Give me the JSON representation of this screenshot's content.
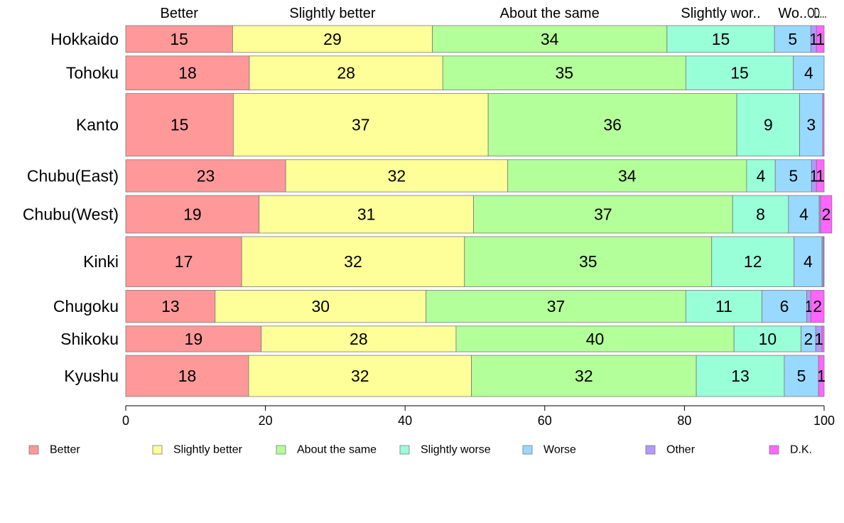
{
  "chart_data": {
    "type": "bar",
    "orientation": "horizontal",
    "stacked": true,
    "variable_width": true,
    "categories": [
      "Hokkaido",
      "Tohoku",
      "Kanto",
      "Chubu(East)",
      "Chubu(West)",
      "Kinki",
      "Chugoku",
      "Shikoku",
      "Kyushu"
    ],
    "top_labels": [
      "Better",
      "Slightly better",
      "About the same",
      "Slightly wor..",
      "Wo..",
      "O..",
      "D..."
    ],
    "series": [
      {
        "name": "Better",
        "color": "#FF9999",
        "values": [
          15.3,
          17.7,
          15.4,
          22.9,
          19.1,
          16.6,
          12.8,
          19.4,
          17.6
        ],
        "labels": [
          "15",
          "18",
          "15",
          "23",
          "19",
          "17",
          "13",
          "19",
          "18"
        ]
      },
      {
        "name": "Slightly better",
        "color": "#FFFF99",
        "values": [
          28.6,
          27.7,
          36.5,
          31.8,
          30.7,
          31.9,
          30.2,
          27.9,
          31.9
        ],
        "labels": [
          "29",
          "28",
          "37",
          "32",
          "31",
          "32",
          "30",
          "28",
          "32"
        ]
      },
      {
        "name": "About the same",
        "color": "#B3FF99",
        "values": [
          33.6,
          34.8,
          35.6,
          34.2,
          37.1,
          35.4,
          37.2,
          39.8,
          32.2
        ],
        "labels": [
          "34",
          "35",
          "36",
          "34",
          "37",
          "35",
          "37",
          "40",
          "32"
        ]
      },
      {
        "name": "Slightly worse",
        "color": "#99FFD9",
        "values": [
          15.4,
          15.4,
          9.0,
          4.1,
          8.0,
          11.8,
          10.9,
          9.6,
          12.6
        ],
        "labels": [
          "15",
          "15",
          "9",
          "4",
          "8",
          "12",
          "11",
          "10",
          "13"
        ]
      },
      {
        "name": "Worse",
        "color": "#99D9FF",
        "values": [
          5.2,
          4.4,
          3.3,
          5.2,
          4.4,
          4.0,
          6.4,
          2.1,
          4.9
        ],
        "labels": [
          "5",
          "4",
          "3",
          "5",
          "4",
          "4",
          "6",
          "2",
          "5"
        ]
      },
      {
        "name": "Other",
        "color": "#B399FF",
        "values": [
          0.8,
          0.0,
          0.0,
          0.7,
          0.2,
          0.2,
          0.6,
          0.9,
          0.0
        ],
        "labels": [
          "1",
          "",
          "",
          "1",
          "",
          "",
          "1",
          "1",
          ""
        ]
      },
      {
        "name": "D.K.",
        "color": "#FF66FF",
        "values": [
          1.1,
          0.0,
          0.2,
          1.1,
          1.6,
          0.1,
          1.9,
          0.3,
          0.8
        ],
        "labels": [
          "1",
          "",
          "",
          "1",
          "2",
          "",
          "2",
          "",
          "1"
        ]
      }
    ],
    "category_weights": [
      0.75,
      0.95,
      1.75,
      0.9,
      1.05,
      1.4,
      0.9,
      0.72,
      1.15
    ],
    "xlim": [
      0,
      100
    ],
    "xticks": [
      0,
      20,
      40,
      60,
      80,
      100
    ],
    "grid": false,
    "legend": {
      "position": "bottom",
      "entries": [
        "Better",
        "Slightly better",
        "About the same",
        "Slightly worse",
        "Worse",
        "Other",
        "D.K."
      ]
    }
  }
}
